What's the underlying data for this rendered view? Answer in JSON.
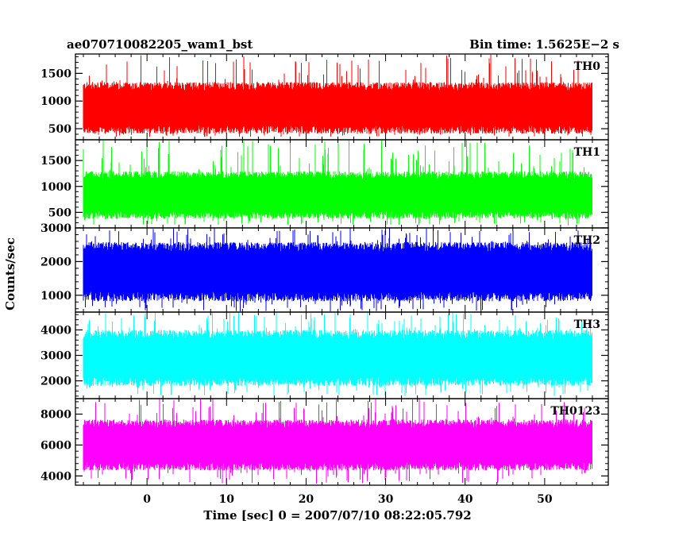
{
  "header": {
    "left_title": "ae070710082205_wam1_bst",
    "right_title": "Bin time: 1.5625E−2 s"
  },
  "chart_data": {
    "type": "line",
    "title": "ae070710082205_wam1_bst",
    "subtitle": "Bin time: 1.5625E−2 s",
    "xlabel": "Time [sec] 0 = 2007/07/10 08:22:05.792",
    "ylabel": "Counts/sec",
    "xlim": [
      -9,
      58
    ],
    "x_ticks": [
      0,
      10,
      20,
      30,
      40,
      50
    ],
    "x_data_range": [
      -8,
      56
    ],
    "grid": false,
    "panels": [
      {
        "name": "TH0",
        "color": "#ff0000",
        "ylim": [
          300,
          1850
        ],
        "y_ticks": [
          500,
          1000,
          1500
        ],
        "typical_low": 450,
        "typical_high": 1300,
        "min": 350,
        "max": 1850
      },
      {
        "name": "TH1",
        "color": "#00ff00",
        "ylim": [
          200,
          1900
        ],
        "y_ticks": [
          500,
          1000,
          1500
        ],
        "typical_low": 420,
        "typical_high": 1250,
        "min": 250,
        "max": 1900
      },
      {
        "name": "TH2",
        "color": "#0000ff",
        "ylim": [
          500,
          3000
        ],
        "y_ticks": [
          1000,
          2000,
          3000
        ],
        "typical_low": 900,
        "typical_high": 2500,
        "min": 520,
        "max": 3000
      },
      {
        "name": "TH3",
        "color": "#00ffff",
        "ylim": [
          1300,
          4700
        ],
        "y_ticks": [
          2000,
          3000,
          4000
        ],
        "typical_low": 1900,
        "typical_high": 3900,
        "min": 1400,
        "max": 4700
      },
      {
        "name": "TH0123",
        "color": "#ff00ff",
        "ylim": [
          3400,
          9000
        ],
        "y_ticks": [
          4000,
          6000,
          8000
        ],
        "typical_low": 4500,
        "typical_high": 7500,
        "min": 3500,
        "max": 9000
      }
    ]
  }
}
